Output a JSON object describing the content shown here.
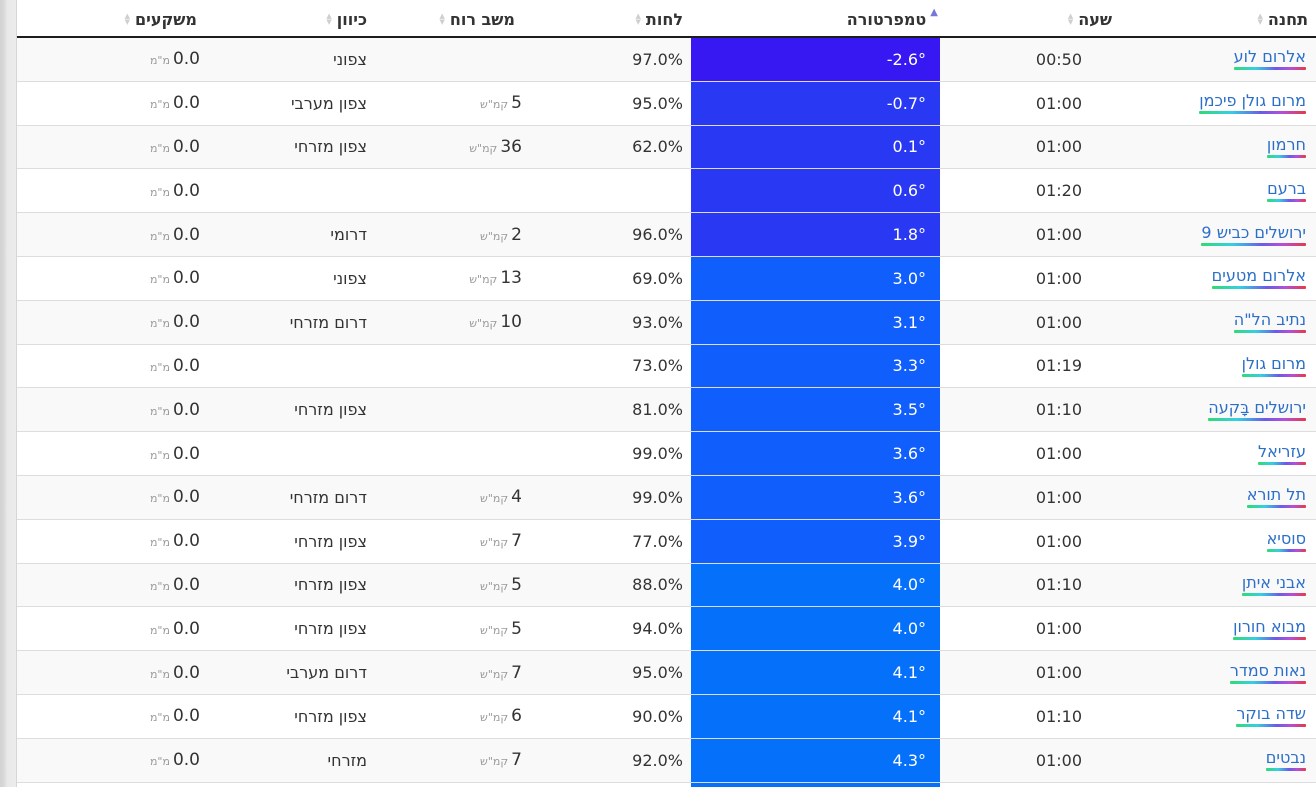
{
  "header": {
    "columns": [
      {
        "key": "station",
        "label": "תחנה",
        "sort": "inactive"
      },
      {
        "key": "time",
        "label": "שעה",
        "sort": "inactive"
      },
      {
        "key": "temperature",
        "label": "טמפרטורה",
        "sort": "ascending"
      },
      {
        "key": "humidity",
        "label": "לחות",
        "sort": "inactive"
      },
      {
        "key": "wind_gust",
        "label": "משב רוח",
        "sort": "inactive"
      },
      {
        "key": "direction",
        "label": "כיוון",
        "sort": "inactive"
      },
      {
        "key": "precipitation",
        "label": "משקעים",
        "sort": "inactive"
      }
    ]
  },
  "units": {
    "wind_unit": "קמ\"ש",
    "precip_unit": "מ\"מ"
  },
  "colors": {
    "station_link": "#2b6fc8",
    "sort_active_arrow": "#7678d8",
    "sort_inactive_icon": "#cfcfcf",
    "header_border": "#1c1c1c",
    "row_border": "#dddddd",
    "row_stripe": "#f9f9f9",
    "next_row_temp": "#0571fa",
    "link_underline_gradient": [
      "#2edb72",
      "#36cfe2",
      "#6a5be8",
      "#b44fd8",
      "#e63946"
    ]
  },
  "rows": [
    {
      "station": "אלרום לוע",
      "time": "00:50",
      "temperature": "-2.6°",
      "temperature_color": "#3718f2",
      "humidity": "97.0%",
      "wind_gust": "",
      "direction": "צפוני",
      "precipitation": "0.0"
    },
    {
      "station": "מרום גולן פיכמן",
      "time": "01:00",
      "temperature": "-0.7°",
      "temperature_color": "#2939f3",
      "humidity": "95.0%",
      "wind_gust": "5",
      "direction": "צפון מערבי",
      "precipitation": "0.0"
    },
    {
      "station": "חרמון",
      "time": "01:00",
      "temperature": "0.1°",
      "temperature_color": "#2939f3",
      "humidity": "62.0%",
      "wind_gust": "36",
      "direction": "צפון מזרחי",
      "precipitation": "0.0"
    },
    {
      "station": "ברעם",
      "time": "01:20",
      "temperature": "0.6°",
      "temperature_color": "#2939f3",
      "humidity": "",
      "wind_gust": "",
      "direction": "",
      "precipitation": "0.0"
    },
    {
      "station": "ירושלים כביש 9",
      "time": "01:00",
      "temperature": "1.8°",
      "temperature_color": "#2939f3",
      "humidity": "96.0%",
      "wind_gust": "2",
      "direction": "דרומי",
      "precipitation": "0.0"
    },
    {
      "station": "אלרום מטעים",
      "time": "01:00",
      "temperature": "3.0°",
      "temperature_color": "#105efb",
      "humidity": "69.0%",
      "wind_gust": "13",
      "direction": "צפוני",
      "precipitation": "0.0"
    },
    {
      "station": "נתיב הל\"ה",
      "time": "01:00",
      "temperature": "3.1°",
      "temperature_color": "#105efb",
      "humidity": "93.0%",
      "wind_gust": "10",
      "direction": "דרום מזרחי",
      "precipitation": "0.0"
    },
    {
      "station": "מרום גולן",
      "time": "01:19",
      "temperature": "3.3°",
      "temperature_color": "#105efb",
      "humidity": "73.0%",
      "wind_gust": "",
      "direction": "",
      "precipitation": "0.0"
    },
    {
      "station": "ירושלים בָּקעה",
      "time": "01:10",
      "temperature": "3.5°",
      "temperature_color": "#105efb",
      "humidity": "81.0%",
      "wind_gust": "",
      "direction": "צפון מזרחי",
      "precipitation": "0.0"
    },
    {
      "station": "עזריאל",
      "time": "01:00",
      "temperature": "3.6°",
      "temperature_color": "#105efb",
      "humidity": "99.0%",
      "wind_gust": "",
      "direction": "",
      "precipitation": "0.0"
    },
    {
      "station": "תל תורא",
      "time": "01:00",
      "temperature": "3.6°",
      "temperature_color": "#105efb",
      "humidity": "99.0%",
      "wind_gust": "4",
      "direction": "דרום מזרחי",
      "precipitation": "0.0"
    },
    {
      "station": "סוסיא",
      "time": "01:00",
      "temperature": "3.9°",
      "temperature_color": "#105efb",
      "humidity": "77.0%",
      "wind_gust": "7",
      "direction": "צפון מזרחי",
      "precipitation": "0.0"
    },
    {
      "station": "אבני איתן",
      "time": "01:10",
      "temperature": "4.0°",
      "temperature_color": "#0571fa",
      "humidity": "88.0%",
      "wind_gust": "5",
      "direction": "צפון מזרחי",
      "precipitation": "0.0"
    },
    {
      "station": "מבוא חורון",
      "time": "01:00",
      "temperature": "4.0°",
      "temperature_color": "#0571fa",
      "humidity": "94.0%",
      "wind_gust": "5",
      "direction": "צפון מזרחי",
      "precipitation": "0.0"
    },
    {
      "station": "נאות סמדר",
      "time": "01:00",
      "temperature": "4.1°",
      "temperature_color": "#0571fa",
      "humidity": "95.0%",
      "wind_gust": "7",
      "direction": "דרום מערבי",
      "precipitation": "0.0"
    },
    {
      "station": "שדה בוקר",
      "time": "01:10",
      "temperature": "4.1°",
      "temperature_color": "#0571fa",
      "humidity": "90.0%",
      "wind_gust": "6",
      "direction": "צפון מזרחי",
      "precipitation": "0.0"
    },
    {
      "station": "נבטים",
      "time": "01:00",
      "temperature": "4.3°",
      "temperature_color": "#0571fa",
      "humidity": "92.0%",
      "wind_gust": "7",
      "direction": "מזרחי",
      "precipitation": "0.0"
    }
  ]
}
